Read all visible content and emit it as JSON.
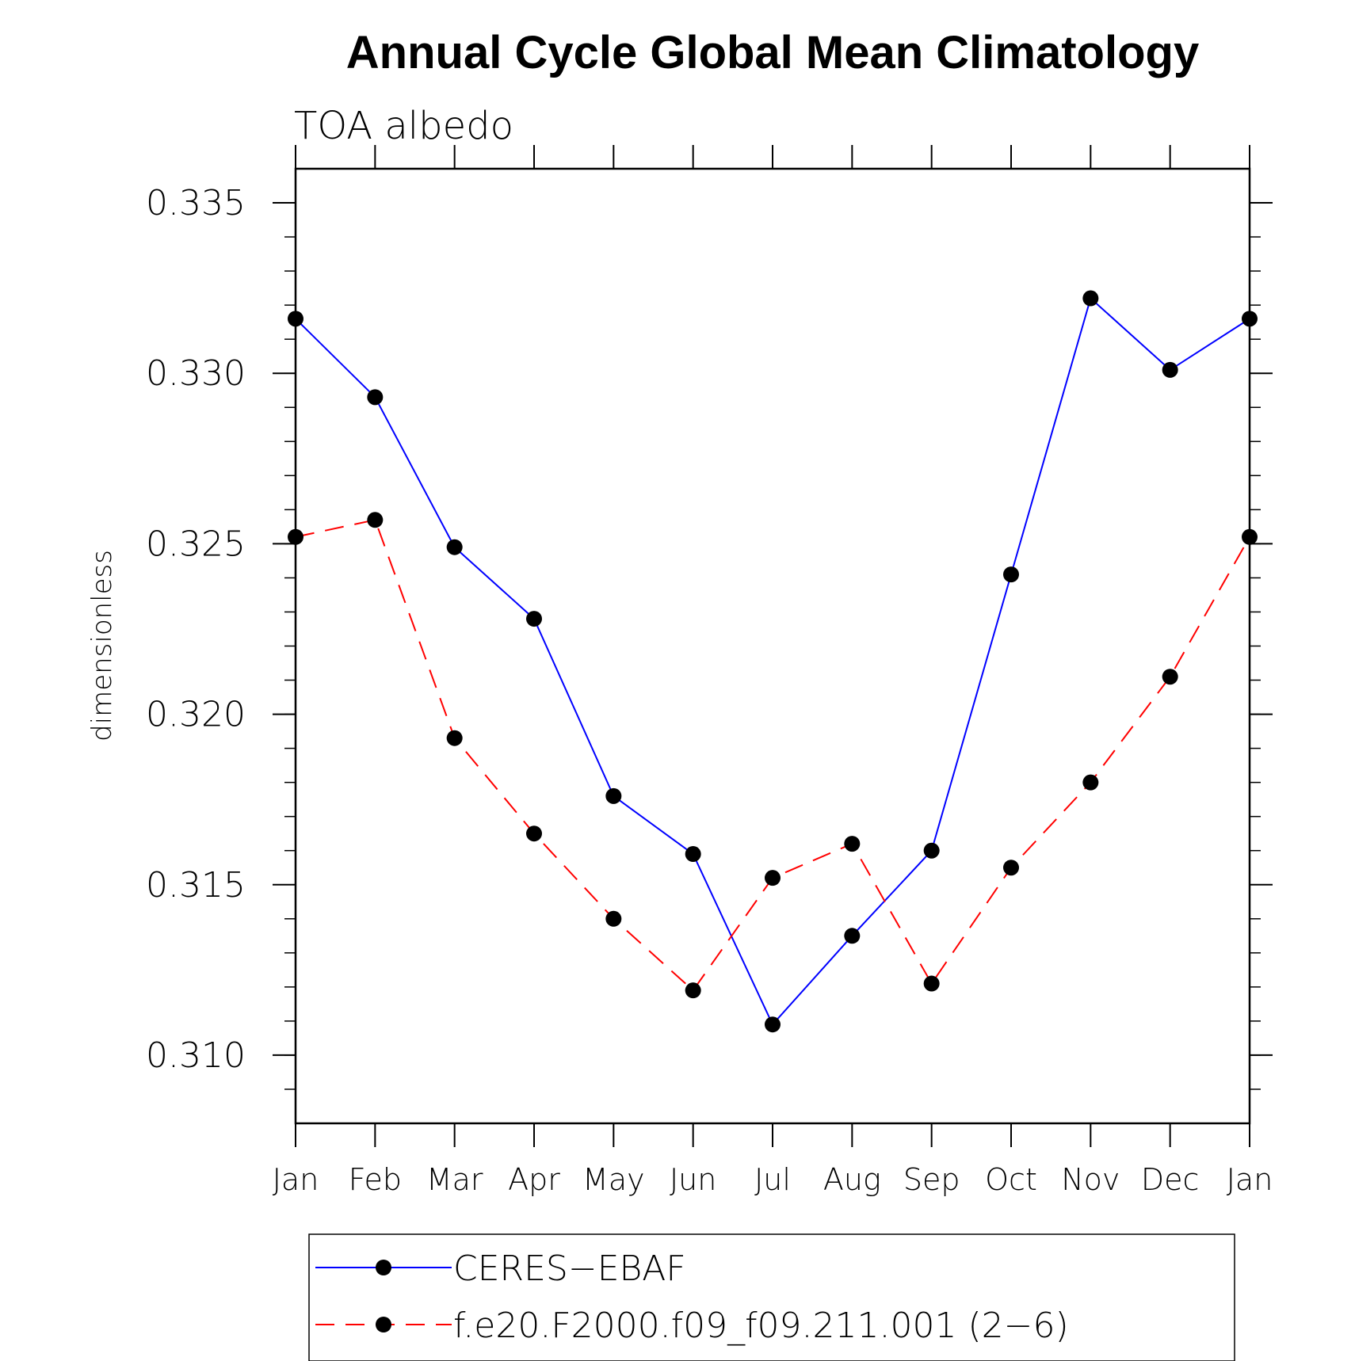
{
  "chart_data": {
    "type": "line",
    "title": "Annual Cycle Global Mean Climatology",
    "subtitle": "TOA albedo",
    "ylabel": "dimensionless",
    "xlabel": "",
    "categories": [
      "Jan",
      "Feb",
      "Mar",
      "Apr",
      "May",
      "Jun",
      "Jul",
      "Aug",
      "Sep",
      "Oct",
      "Nov",
      "Dec",
      "Jan"
    ],
    "ylim": [
      0.308,
      0.336
    ],
    "yticks": [
      0.31,
      0.315,
      0.32,
      0.325,
      0.33,
      0.335
    ],
    "ytick_labels": [
      "0.310",
      "0.315",
      "0.320",
      "0.325",
      "0.330",
      "0.335"
    ],
    "yminor_step": 0.001,
    "grid": false,
    "legend_position": "bottom",
    "series": [
      {
        "name": "CERES−EBAF",
        "color": "#0000ff",
        "dash": "solid",
        "marker": "filled-circle",
        "values": [
          0.3316,
          0.3293,
          0.3249,
          0.3228,
          0.3176,
          0.3159,
          0.3109,
          0.3135,
          0.316,
          0.3241,
          0.3322,
          0.3301,
          0.3316
        ]
      },
      {
        "name": "f.e20.F2000.f09_f09.211.001 (2−6)",
        "color": "#ff0000",
        "dash": "dashed",
        "marker": "filled-circle",
        "values": [
          0.3252,
          0.3257,
          0.3193,
          0.3165,
          0.314,
          0.3119,
          0.3152,
          0.3162,
          0.3121,
          0.3155,
          0.318,
          0.3211,
          0.3252
        ]
      }
    ]
  }
}
